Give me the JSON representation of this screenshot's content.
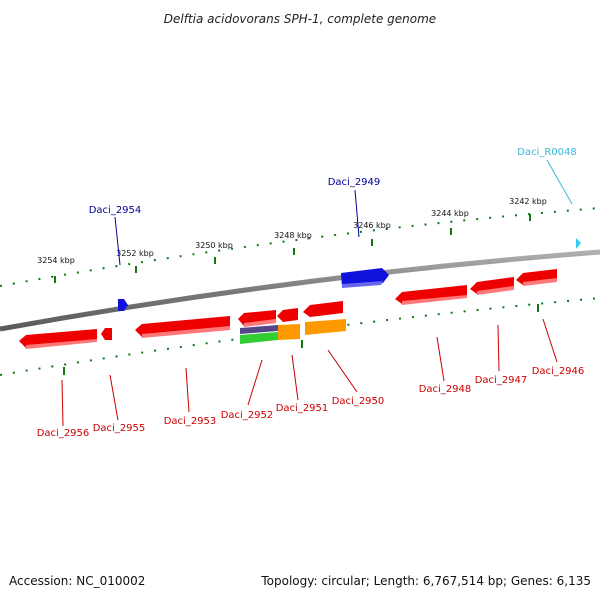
{
  "title": "Delftia acidovorans SPH-1, complete genome",
  "footer": {
    "accession": "Accession: NC_010002",
    "summary": "Topology: circular; Length: 6,767,514 bp; Genes: 6,135"
  },
  "ticks": [
    "3254 kbp",
    "3252 kbp",
    "3250 kbp",
    "3248 kbp",
    "3246 kbp",
    "3244 kbp",
    "3242 kbp"
  ],
  "genes": [
    {
      "name": "Daci_2956",
      "color": "#cc0000"
    },
    {
      "name": "Daci_2955",
      "color": "#cc0000"
    },
    {
      "name": "Daci_2954",
      "color": "#000099"
    },
    {
      "name": "Daci_2953",
      "color": "#cc0000"
    },
    {
      "name": "Daci_2952",
      "color": "#cc0000"
    },
    {
      "name": "Daci_2951",
      "color": "#cc0000"
    },
    {
      "name": "Daci_2950",
      "color": "#cc0000"
    },
    {
      "name": "Daci_2949",
      "color": "#000099"
    },
    {
      "name": "Daci_2948",
      "color": "#cc0000"
    },
    {
      "name": "Daci_2947",
      "color": "#cc0000"
    },
    {
      "name": "Daci_2946",
      "color": "#cc0000"
    },
    {
      "name": "Daci_R0048",
      "color": "#33bbdd"
    }
  ],
  "colors": {
    "reverse_strand": "#ee0000",
    "forward_strand": "#1111dd",
    "rna": "#33ccee",
    "backbone": "#888888",
    "tick": "#117711",
    "domain_orange": "#ff9900",
    "domain_green": "#33cc33",
    "domain_purple": "#554488"
  }
}
